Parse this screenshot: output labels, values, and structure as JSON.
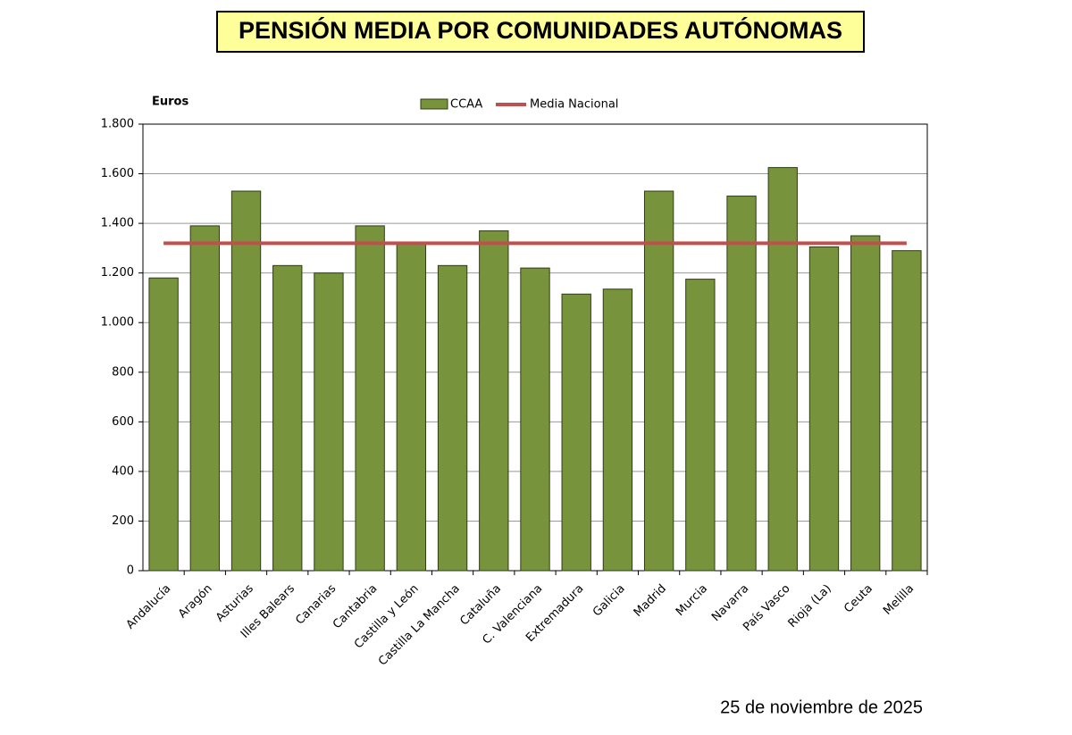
{
  "chart_data": {
    "type": "bar",
    "title": "PENSIÓN MEDIA POR COMUNIDADES AUTÓNOMAS",
    "y_label": "Euros",
    "annotation": "25 de noviembre de 2025",
    "categories": [
      "Andalucía",
      "Aragón",
      "Asturias",
      "Illes Balears",
      "Canarias",
      "Cantabria",
      "Castilla y León",
      "Castilla La Mancha",
      "Cataluña",
      "C. Valenciana",
      "Extremadura",
      "Galicia",
      "Madrid",
      "Murcia",
      "Navarra",
      "País Vasco",
      "Rioja (La)",
      "Ceuta",
      "Melilla"
    ],
    "series": [
      {
        "name": "CCAA",
        "type": "bar",
        "color": "#77933c",
        "values": [
          1180,
          1390,
          1530,
          1230,
          1200,
          1390,
          1320,
          1230,
          1370,
          1220,
          1115,
          1135,
          1530,
          1175,
          1510,
          1625,
          1305,
          1350,
          1290
        ]
      },
      {
        "name": "Media Nacional",
        "type": "line",
        "color": "#c0504d",
        "values": [
          1320,
          1320,
          1320,
          1320,
          1320,
          1320,
          1320,
          1320,
          1320,
          1320,
          1320,
          1320,
          1320,
          1320,
          1320,
          1320,
          1320,
          1320,
          1320
        ]
      }
    ],
    "ylim": [
      0,
      1800
    ],
    "yticks": [
      0,
      200,
      400,
      600,
      800,
      {
        "value": 1000,
        "label": "1.000"
      },
      {
        "value": 1200,
        "label": "1.200"
      },
      {
        "value": 1400,
        "label": "1.400"
      },
      {
        "value": 1600,
        "label": "1.600"
      },
      {
        "value": 1800,
        "label": "1.800"
      }
    ],
    "grid": true
  }
}
